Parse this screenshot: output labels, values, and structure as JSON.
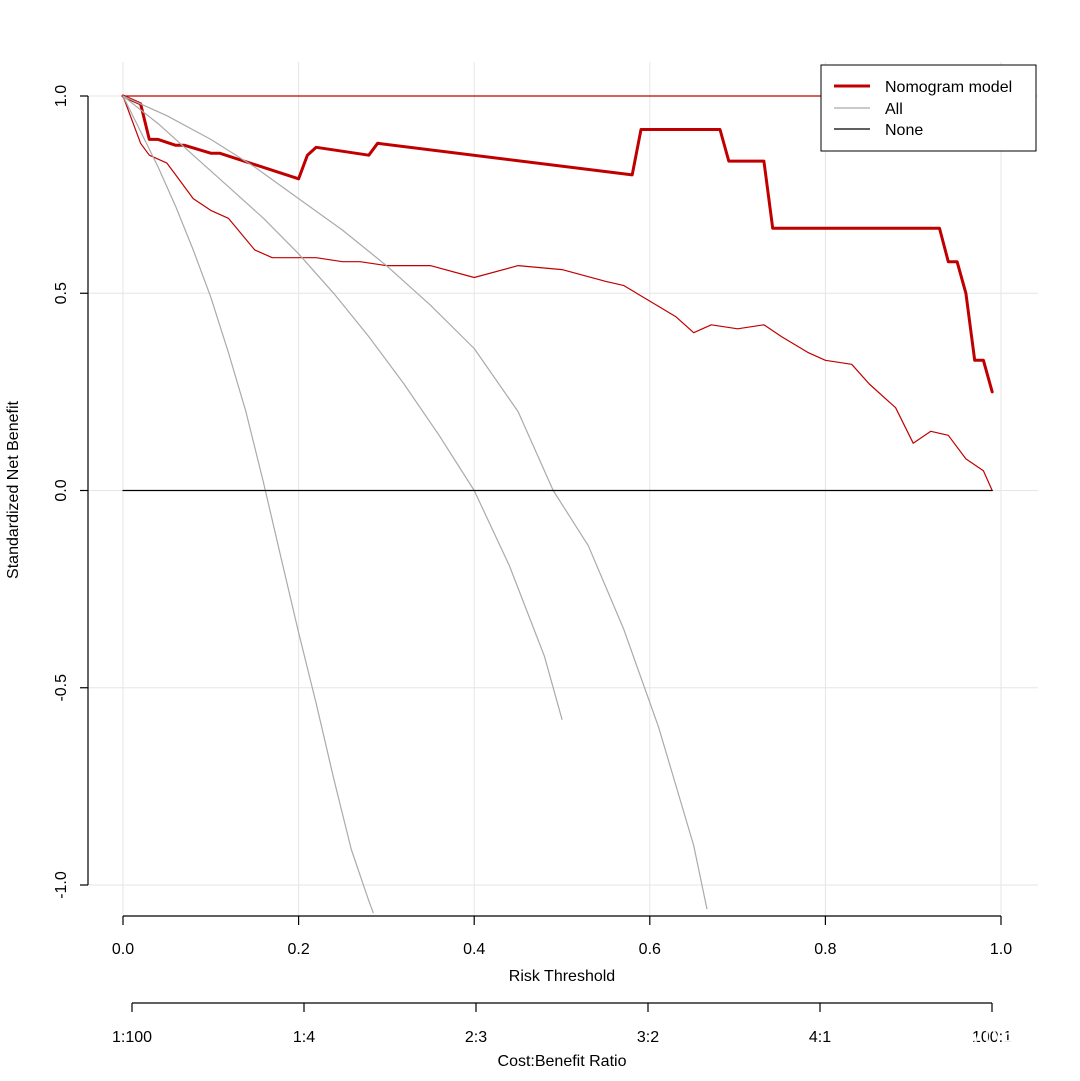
{
  "chart_data": {
    "type": "line",
    "xlabel": "Risk Threshold",
    "ylabel": "Standardized Net Benefit",
    "xlim": [
      0,
      1
    ],
    "ylim": [
      -1,
      1
    ],
    "x_ticks": [
      "0.0",
      "0.2",
      "0.4",
      "0.6",
      "0.8",
      "1.0"
    ],
    "y_ticks": [
      "-1.0",
      "-0.5",
      "0.0",
      "0.5",
      "1.0"
    ],
    "grid": true,
    "secondary_axis": {
      "label": "Cost:Benefit Ratio",
      "ticks": [
        "1:100",
        "1:4",
        "2:3",
        "3:2",
        "4:1",
        "100:1"
      ]
    },
    "legend": {
      "position": "top-right",
      "entries": [
        {
          "label": "Nomogram model",
          "color": "#c00000",
          "style": "thick"
        },
        {
          "label": "All",
          "color": "#aaaaaa",
          "style": "thin"
        },
        {
          "label": "None",
          "color": "#000000",
          "style": "thin"
        }
      ]
    },
    "series": [
      {
        "name": "Nomogram model",
        "color": "#c00000",
        "x": [
          0.0,
          0.02,
          0.03,
          0.04,
          0.06,
          0.07,
          0.1,
          0.11,
          0.2,
          0.21,
          0.22,
          0.28,
          0.29,
          0.58,
          0.59,
          0.68,
          0.69,
          0.73,
          0.74,
          0.93,
          0.94,
          0.95,
          0.96,
          0.97,
          0.98,
          0.99
        ],
        "y": [
          1.0,
          0.98,
          0.89,
          0.89,
          0.875,
          0.875,
          0.855,
          0.855,
          0.79,
          0.85,
          0.87,
          0.85,
          0.88,
          0.8,
          0.915,
          0.915,
          0.835,
          0.835,
          0.665,
          0.665,
          0.58,
          0.58,
          0.5,
          0.33,
          0.33,
          0.25
        ]
      },
      {
        "name": "Nomogram model (upper bound)",
        "color": "#c00000",
        "x": [
          0.0,
          0.99
        ],
        "y": [
          1.0,
          1.0
        ]
      },
      {
        "name": "Nomogram model (lower bound)",
        "color": "#c00000",
        "x": [
          0.0,
          0.02,
          0.03,
          0.05,
          0.06,
          0.08,
          0.1,
          0.12,
          0.15,
          0.17,
          0.2,
          0.22,
          0.25,
          0.27,
          0.3,
          0.35,
          0.4,
          0.45,
          0.5,
          0.55,
          0.57,
          0.6,
          0.63,
          0.65,
          0.67,
          0.7,
          0.73,
          0.75,
          0.78,
          0.8,
          0.83,
          0.85,
          0.88,
          0.9,
          0.92,
          0.94,
          0.96,
          0.98,
          0.99
        ],
        "y": [
          1.0,
          0.88,
          0.85,
          0.83,
          0.8,
          0.74,
          0.71,
          0.69,
          0.61,
          0.59,
          0.59,
          0.59,
          0.58,
          0.58,
          0.57,
          0.57,
          0.54,
          0.57,
          0.56,
          0.53,
          0.52,
          0.48,
          0.44,
          0.4,
          0.42,
          0.41,
          0.42,
          0.39,
          0.35,
          0.33,
          0.32,
          0.27,
          0.21,
          0.12,
          0.15,
          0.14,
          0.08,
          0.05,
          0.0
        ]
      },
      {
        "name": "All",
        "color": "#aaaaaa",
        "x": [
          0.0,
          0.04,
          0.08,
          0.12,
          0.16,
          0.2,
          0.24,
          0.28,
          0.32,
          0.36,
          0.4,
          0.44,
          0.48,
          0.5
        ],
        "y": [
          1.0,
          0.93,
          0.85,
          0.77,
          0.69,
          0.6,
          0.5,
          0.39,
          0.27,
          0.14,
          0.0,
          -0.19,
          -0.42,
          -0.58
        ]
      },
      {
        "name": "All (upper bound)",
        "color": "#aaaaaa",
        "x": [
          0.0,
          0.05,
          0.1,
          0.15,
          0.2,
          0.25,
          0.3,
          0.35,
          0.4,
          0.45,
          0.49,
          0.53,
          0.57,
          0.61,
          0.65,
          0.665
        ],
        "y": [
          1.0,
          0.95,
          0.89,
          0.82,
          0.74,
          0.66,
          0.57,
          0.47,
          0.36,
          0.2,
          0.0,
          -0.14,
          -0.35,
          -0.6,
          -0.9,
          -1.06
        ]
      },
      {
        "name": "All (lower bound)",
        "color": "#aaaaaa",
        "x": [
          0.0,
          0.02,
          0.04,
          0.06,
          0.08,
          0.1,
          0.12,
          0.14,
          0.16,
          0.18,
          0.2,
          0.22,
          0.24,
          0.26,
          0.28,
          0.285
        ],
        "y": [
          1.0,
          0.91,
          0.82,
          0.72,
          0.61,
          0.49,
          0.35,
          0.2,
          0.02,
          -0.17,
          -0.36,
          -0.54,
          -0.73,
          -0.91,
          -1.04,
          -1.07
        ]
      },
      {
        "name": "None",
        "color": "#000000",
        "x": [
          0.0,
          0.99
        ],
        "y": [
          0.0,
          0.0
        ]
      }
    ]
  },
  "watermark": "知乎 @蔡小明"
}
